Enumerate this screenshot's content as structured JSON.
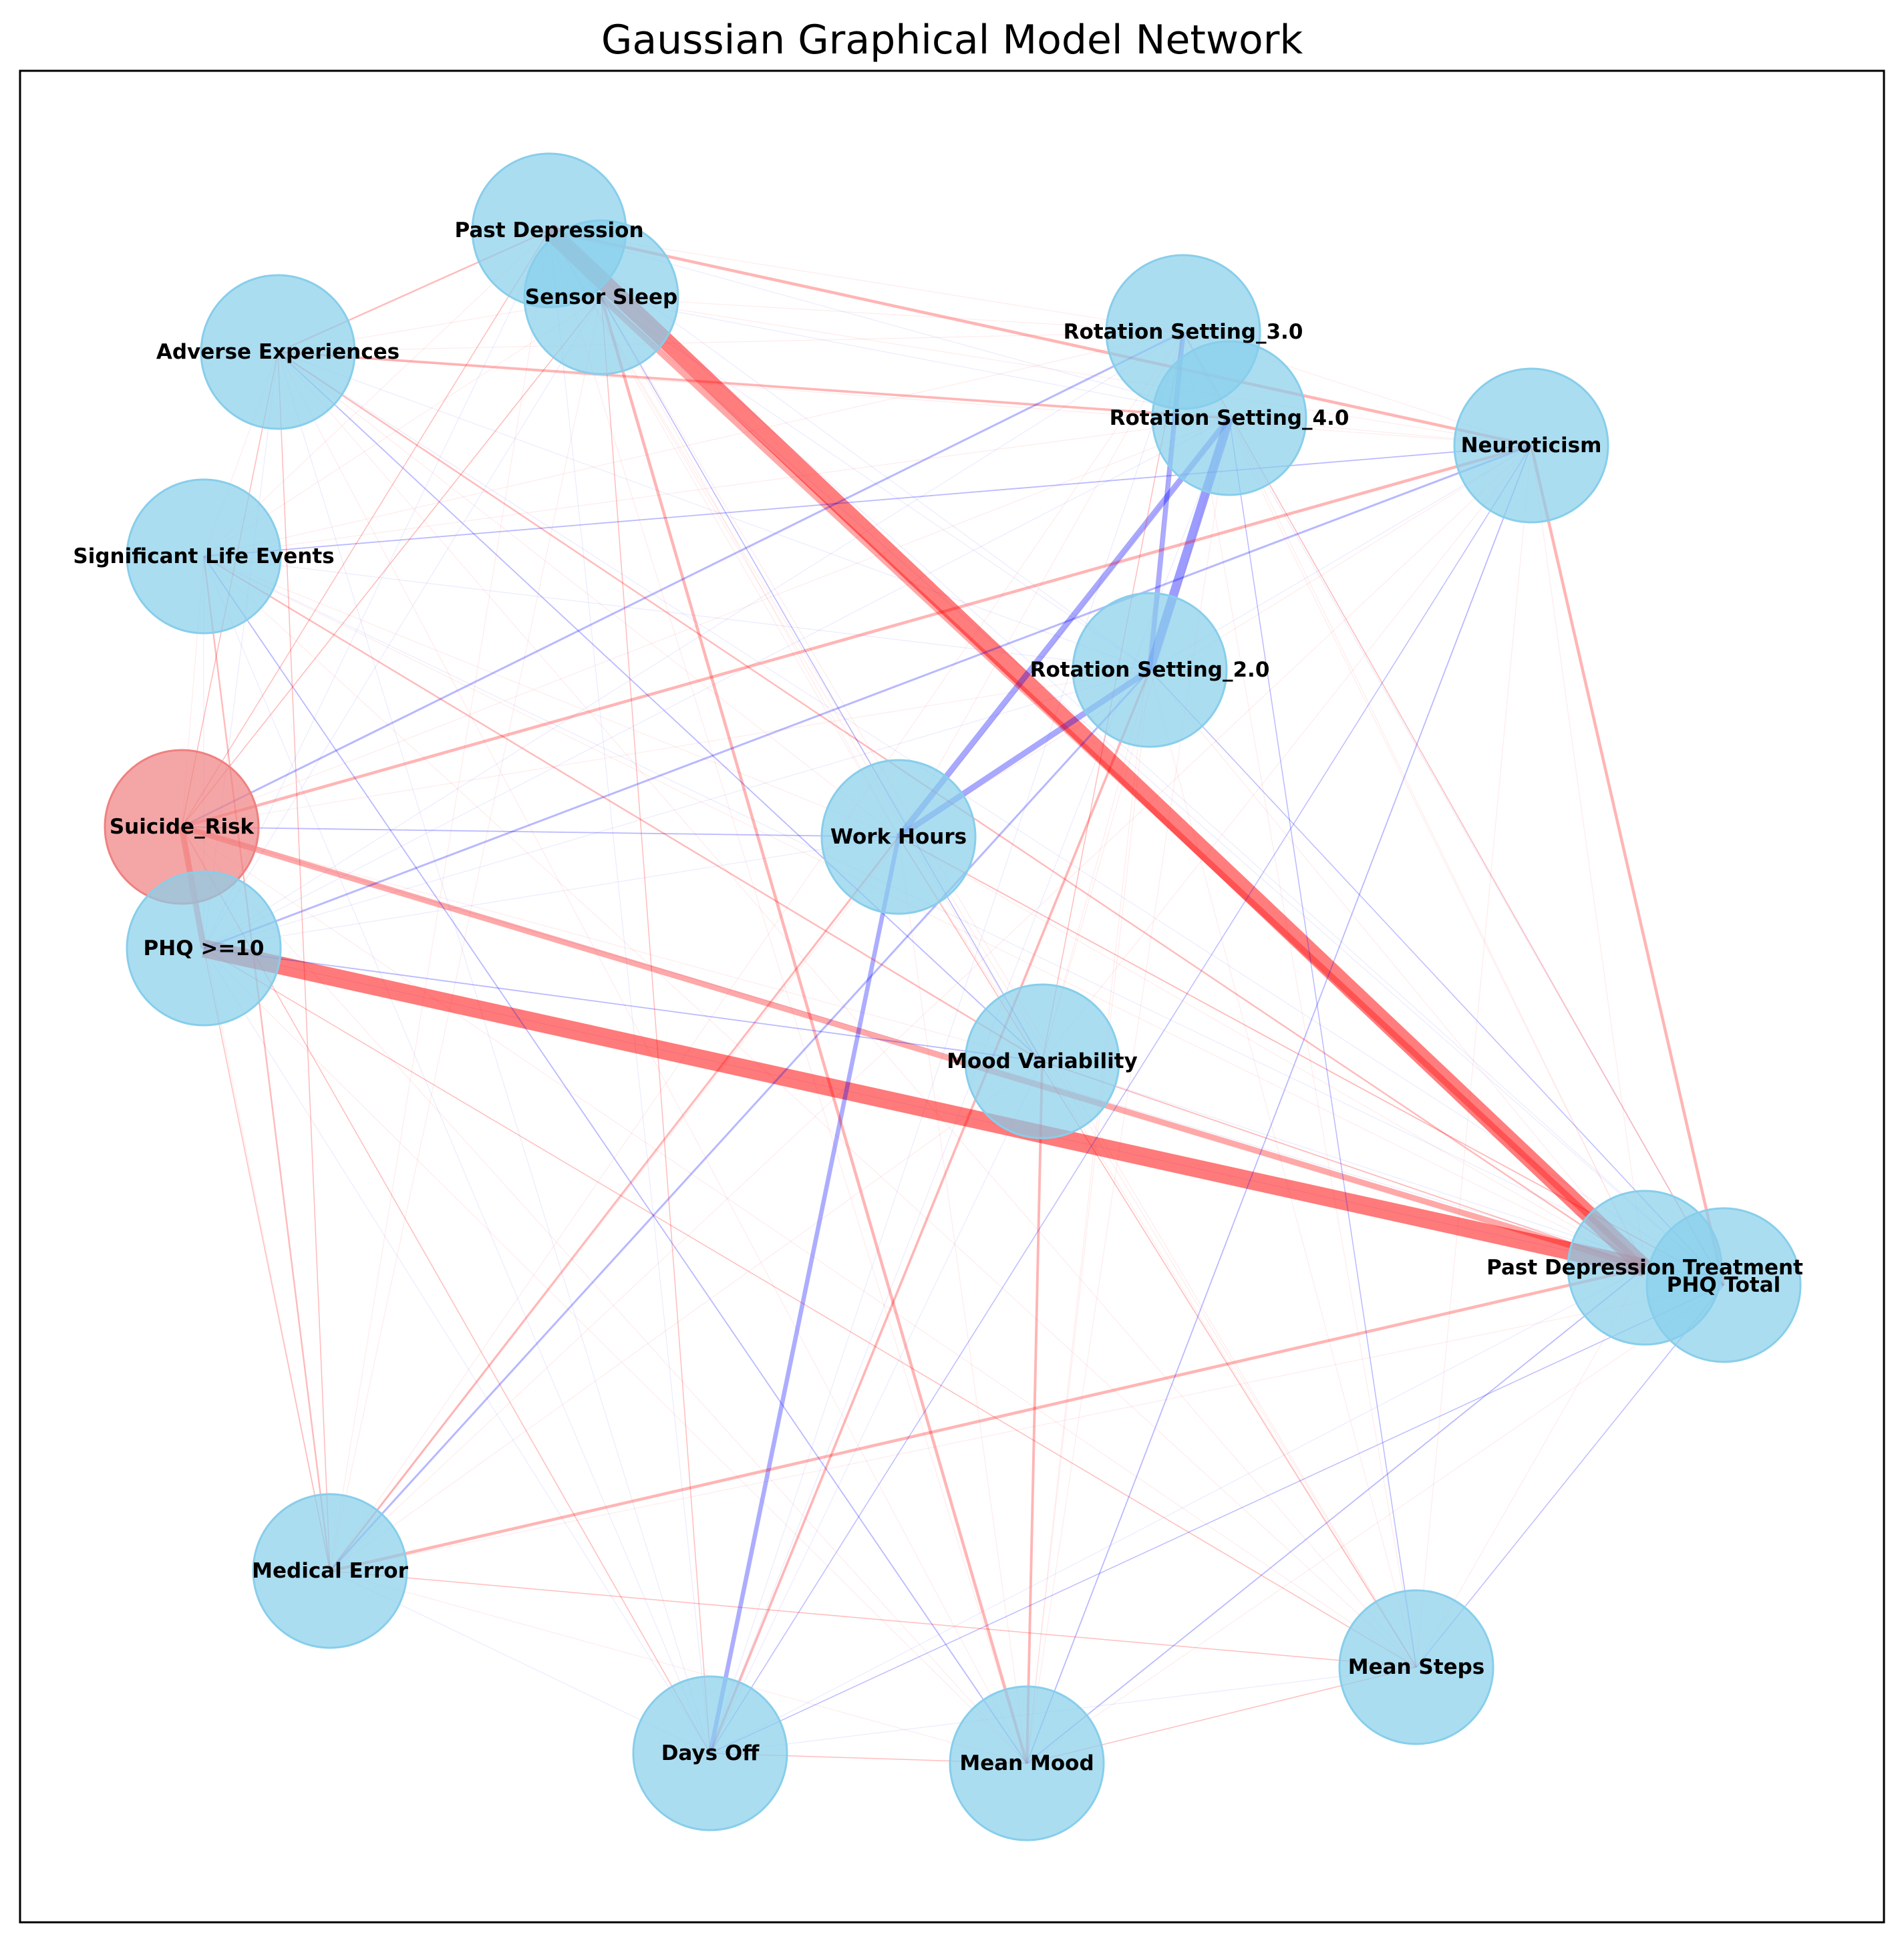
{
  "title": "Gaussian Graphical Model Network",
  "colors": {
    "node_fill": "#87CEEB",
    "highlight_node_fill": "#F08080",
    "positive_edge": "#FF0000",
    "negative_edge": "#0000FF"
  },
  "nodes": [
    {
      "id": "past_depression",
      "label": "Past Depression",
      "highlight": false
    },
    {
      "id": "sensor_sleep",
      "label": "Sensor Sleep",
      "highlight": false
    },
    {
      "id": "adverse_experiences",
      "label": "Adverse Experiences",
      "highlight": false
    },
    {
      "id": "rotation_3",
      "label": "Rotation Setting_3.0",
      "highlight": false
    },
    {
      "id": "rotation_4",
      "label": "Rotation Setting_4.0",
      "highlight": false
    },
    {
      "id": "neuroticism",
      "label": "Neuroticism",
      "highlight": false
    },
    {
      "id": "significant_life_events",
      "label": "Significant Life Events",
      "highlight": false
    },
    {
      "id": "rotation_2",
      "label": "Rotation Setting_2.0",
      "highlight": false
    },
    {
      "id": "suicide_risk",
      "label": "Suicide_Risk",
      "highlight": true
    },
    {
      "id": "work_hours",
      "label": "Work Hours",
      "highlight": false
    },
    {
      "id": "phq10",
      "label": "PHQ >=10",
      "highlight": false
    },
    {
      "id": "mood_variability",
      "label": "Mood Variability",
      "highlight": false
    },
    {
      "id": "past_depression_treatment",
      "label": "Past Depression Treatment",
      "highlight": false
    },
    {
      "id": "phq_total",
      "label": "PHQ Total",
      "highlight": false
    },
    {
      "id": "medical_error",
      "label": "Medical Error",
      "highlight": false
    },
    {
      "id": "mean_steps",
      "label": "Mean Steps",
      "highlight": false
    },
    {
      "id": "days_off",
      "label": "Days Off",
      "highlight": false
    },
    {
      "id": "mean_mood",
      "label": "Mean Mood",
      "highlight": false
    }
  ],
  "edges": [
    {
      "source": "phq10",
      "target": "past_depression_treatment",
      "sign": "positive",
      "weight": 0.9
    },
    {
      "source": "past_depression",
      "target": "past_depression_treatment",
      "sign": "positive",
      "weight": 0.85
    },
    {
      "source": "rotation_4",
      "target": "rotation_2",
      "sign": "negative",
      "weight": 0.45
    },
    {
      "source": "rotation_3",
      "target": "rotation_2",
      "sign": "negative",
      "weight": 0.25
    },
    {
      "source": "rotation_4",
      "target": "work_hours",
      "sign": "negative",
      "weight": 0.3
    },
    {
      "source": "rotation_2",
      "target": "work_hours",
      "sign": "negative",
      "weight": 0.3
    },
    {
      "source": "suicide_risk",
      "target": "past_depression_treatment",
      "sign": "positive",
      "weight": 0.3
    },
    {
      "source": "suicide_risk",
      "target": "phq10",
      "sign": "positive",
      "weight": 0.3
    },
    {
      "source": "sensor_sleep",
      "target": "past_depression_treatment",
      "sign": "positive",
      "weight": 0.3
    },
    {
      "source": "work_hours",
      "target": "days_off",
      "sign": "negative",
      "weight": 0.22
    },
    {
      "source": "past_depression",
      "target": "neuroticism",
      "sign": "positive",
      "weight": 0.15
    },
    {
      "source": "adverse_experiences",
      "target": "rotation_4",
      "sign": "positive",
      "weight": 0.12
    },
    {
      "source": "suicide_risk",
      "target": "neuroticism",
      "sign": "positive",
      "weight": 0.15
    },
    {
      "source": "neuroticism",
      "target": "phq_total",
      "sign": "positive",
      "weight": 0.15
    },
    {
      "source": "past_depression_treatment",
      "target": "medical_error",
      "sign": "positive",
      "weight": 0.15
    },
    {
      "source": "sensor_sleep",
      "target": "mean_mood",
      "sign": "positive",
      "weight": 0.15
    },
    {
      "source": "mood_variability",
      "target": "mean_mood",
      "sign": "positive",
      "weight": 0.13
    },
    {
      "source": "rotation_2",
      "target": "days_off",
      "sign": "positive",
      "weight": 0.12
    },
    {
      "source": "work_hours",
      "target": "medical_error",
      "sign": "positive",
      "weight": 0.1
    },
    {
      "source": "rotation_3",
      "target": "suicide_risk",
      "sign": "negative",
      "weight": 0.1
    },
    {
      "source": "neuroticism",
      "target": "phq10",
      "sign": "negative",
      "weight": 0.1
    },
    {
      "source": "rotation_2",
      "target": "medical_error",
      "sign": "negative",
      "weight": 0.1
    },
    {
      "source": "neuroticism",
      "target": "mean_mood",
      "sign": "negative",
      "weight": 0.06
    },
    {
      "source": "past_depression",
      "target": "adverse_experiences",
      "sign": "positive",
      "weight": 0.08
    },
    {
      "source": "significant_life_events",
      "target": "neuroticism",
      "sign": "negative",
      "weight": 0.06
    },
    {
      "source": "adverse_experiences",
      "target": "mood_variability",
      "sign": "negative",
      "weight": 0.06
    },
    {
      "source": "adverse_experiences",
      "target": "past_depression_treatment",
      "sign": "positive",
      "weight": 0.08
    },
    {
      "source": "significant_life_events",
      "target": "mood_variability",
      "sign": "positive",
      "weight": 0.08
    },
    {
      "source": "significant_life_events",
      "target": "medical_error",
      "sign": "positive",
      "weight": 0.08
    },
    {
      "source": "significant_life_events",
      "target": "mean_mood",
      "sign": "negative",
      "weight": 0.06
    },
    {
      "source": "suicide_risk",
      "target": "work_hours",
      "sign": "negative",
      "weight": 0.06
    },
    {
      "source": "phq10",
      "target": "mood_variability",
      "sign": "negative",
      "weight": 0.06
    },
    {
      "source": "work_hours",
      "target": "phq_total",
      "sign": "positive",
      "weight": 0.06
    },
    {
      "source": "mood_variability",
      "target": "past_depression_treatment",
      "sign": "positive",
      "weight": 0.06
    },
    {
      "source": "past_depression_treatment",
      "target": "mean_mood",
      "sign": "negative",
      "weight": 0.06
    },
    {
      "source": "rotation_3",
      "target": "phq_total",
      "sign": "positive",
      "weight": 0.05
    },
    {
      "source": "sensor_sleep",
      "target": "suicide_risk",
      "sign": "positive",
      "weight": 0.05
    },
    {
      "source": "adverse_experiences",
      "target": "medical_error",
      "sign": "positive",
      "weight": 0.05
    },
    {
      "source": "sensor_sleep",
      "target": "mood_variability",
      "sign": "negative",
      "weight": 0.05
    },
    {
      "source": "rotation_4",
      "target": "mean_steps",
      "sign": "negative",
      "weight": 0.05
    },
    {
      "source": "neuroticism",
      "target": "days_off",
      "sign": "negative",
      "weight": 0.04
    },
    {
      "source": "mean_steps",
      "target": "phq_total",
      "sign": "negative",
      "weight": 0.04
    },
    {
      "source": "work_hours",
      "target": "mean_steps",
      "sign": "positive",
      "weight": 0.05
    },
    {
      "source": "medical_error",
      "target": "mean_steps",
      "sign": "positive",
      "weight": 0.04
    },
    {
      "source": "phq10",
      "target": "mean_steps",
      "sign": "positive",
      "weight": 0.04
    },
    {
      "source": "suicide_risk",
      "target": "days_off",
      "sign": "positive",
      "weight": 0.04
    },
    {
      "source": "days_off",
      "target": "mean_mood",
      "sign": "positive",
      "weight": 0.03
    },
    {
      "source": "days_off",
      "target": "phq_total",
      "sign": "negative",
      "weight": 0.03
    },
    {
      "source": "sensor_sleep",
      "target": "days_off",
      "sign": "positive",
      "weight": 0.04
    },
    {
      "source": "past_depression",
      "target": "suicide_risk",
      "sign": "positive",
      "weight": 0.04
    },
    {
      "source": "adverse_experiences",
      "target": "suicide_risk",
      "sign": "positive",
      "weight": 0.05
    },
    {
      "source": "rotation_3",
      "target": "mood_variability",
      "sign": "positive",
      "weight": 0.04
    },
    {
      "source": "mean_steps",
      "target": "mean_mood",
      "sign": "positive",
      "weight": 0.03
    },
    {
      "source": "rotation_2",
      "target": "phq_total",
      "sign": "negative",
      "weight": 0.04
    },
    {
      "source": "phq10",
      "target": "medical_error",
      "sign": "positive",
      "weight": 0.04
    }
  ]
}
